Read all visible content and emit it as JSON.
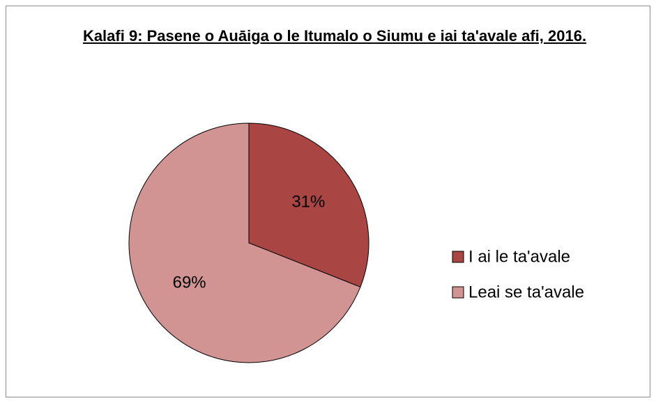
{
  "chart_data": {
    "type": "pie",
    "title": "Kalafi 9: Pasene o Auāiga o le Itumalo o Siumu e iai ta'avale afi, 2016.",
    "categories": [
      "I ai le ta'avale",
      "Leai se ta'avale"
    ],
    "values": [
      31,
      69
    ],
    "value_labels": [
      "31%",
      "69%"
    ],
    "colors": [
      "#a94542",
      "#d29492"
    ],
    "legend": "right"
  }
}
